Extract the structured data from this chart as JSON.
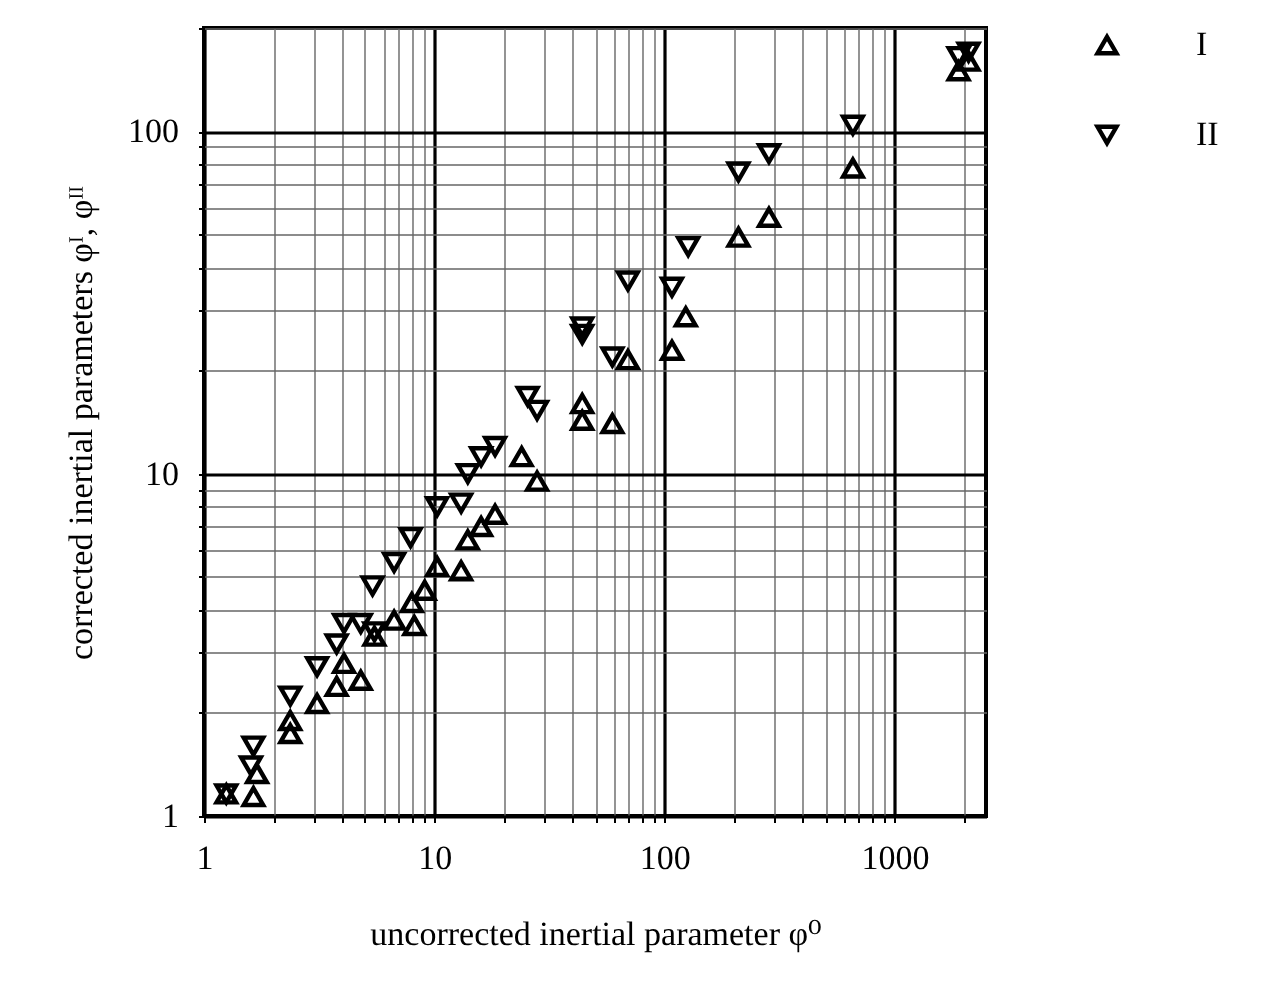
{
  "chart_data": {
    "type": "scatter",
    "xlabel": "uncorrected inertial parameter  φ⁰",
    "ylabel": "corrected inertial parameters  φᴵ, φᴵᴵ",
    "log": "xy",
    "grid": true,
    "legend": "right",
    "xlim": [
      1,
      2500
    ],
    "ylim": [
      1,
      200
    ],
    "xticks": [
      1,
      {
        "value": 2,
        "label": null
      },
      {
        "value": 3,
        "label": null
      },
      {
        "value": 4,
        "label": null
      },
      {
        "value": 5,
        "label": null
      },
      {
        "value": 6,
        "label": null
      },
      {
        "value": 7,
        "label": null
      },
      {
        "value": 8,
        "label": null
      },
      {
        "value": 9,
        "label": null
      },
      10,
      {
        "value": 20,
        "label": null
      },
      {
        "value": 30,
        "label": null
      },
      {
        "value": 40,
        "label": null
      },
      {
        "value": 50,
        "label": null
      },
      {
        "value": 60,
        "label": null
      },
      {
        "value": 70,
        "label": null
      },
      {
        "value": 80,
        "label": null
      },
      {
        "value": 90,
        "label": null
      },
      100,
      {
        "value": 200,
        "label": null
      },
      {
        "value": 300,
        "label": null
      },
      {
        "value": 400,
        "label": null
      },
      {
        "value": 500,
        "label": null
      },
      {
        "value": 600,
        "label": null
      },
      {
        "value": 700,
        "label": null
      },
      {
        "value": 800,
        "label": null
      },
      {
        "value": 900,
        "label": null
      },
      1000,
      {
        "value": 2000,
        "label": null
      }
    ],
    "yticks": [
      1,
      {
        "value": 2,
        "label": null
      },
      {
        "value": 3,
        "label": null
      },
      {
        "value": 4,
        "label": null
      },
      {
        "value": 5,
        "label": null
      },
      {
        "value": 6,
        "label": null
      },
      {
        "value": 7,
        "label": null
      },
      {
        "value": 8,
        "label": null
      },
      {
        "value": 9,
        "label": null
      },
      10,
      {
        "value": 20,
        "label": null
      },
      {
        "value": 30,
        "label": null
      },
      {
        "value": 40,
        "label": null
      },
      {
        "value": 50,
        "label": null
      },
      {
        "value": 60,
        "label": null
      },
      {
        "value": 70,
        "label": null
      },
      {
        "value": 80,
        "label": null
      },
      {
        "value": 90,
        "label": null
      },
      100,
      {
        "value": 200,
        "label": null
      }
    ],
    "series": [
      {
        "name": "I",
        "color": "#000000",
        "marker": "triangle-up",
        "x": [
          1.25,
          1.64,
          1.7,
          2.37,
          2.37,
          3.1,
          3.77,
          4.06,
          4.8,
          5.5,
          6.7,
          8.2,
          8.0,
          9.1,
          10.3,
          13.1,
          14,
          16,
          18.4,
          24,
          28,
          44,
          44,
          59.5,
          69.5,
          108,
          124,
          210,
          285,
          660,
          1900,
          2100
        ],
        "values": [
          1.16,
          1.14,
          1.33,
          1.74,
          1.9,
          2.13,
          2.39,
          2.79,
          2.49,
          3.35,
          3.73,
          3.6,
          4.2,
          4.56,
          5.35,
          5.2,
          6.4,
          7.0,
          7.6,
          11.2,
          9.5,
          16,
          14.3,
          14,
          21.5,
          22.9,
          28.7,
          49,
          56,
          78,
          150,
          160
        ]
      },
      {
        "name": "II",
        "color": "#000000",
        "marker": "triangle-down",
        "x": [
          1.25,
          1.6,
          1.64,
          2.37,
          3.1,
          3.77,
          4.06,
          4.8,
          5.5,
          5.4,
          6.7,
          7.9,
          10.3,
          13.1,
          14,
          16,
          18.4,
          25.5,
          28,
          44,
          44,
          59.5,
          69.5,
          108,
          127,
          210,
          285,
          660,
          1900,
          2100
        ],
        "values": [
          1.16,
          1.4,
          1.6,
          2.24,
          2.73,
          3.18,
          3.65,
          3.65,
          3.45,
          4.7,
          5.5,
          6.5,
          8.0,
          8.2,
          10,
          11.2,
          12,
          16.8,
          15.3,
          25.5,
          26.8,
          21.9,
          36.5,
          35,
          46,
          76,
          86,
          104,
          165,
          170
        ]
      }
    ]
  }
}
